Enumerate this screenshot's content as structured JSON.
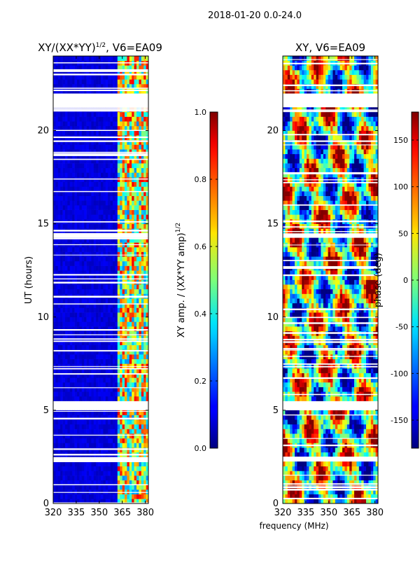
{
  "page_title": "2018-01-20 0.0-24.0",
  "chart_data": [
    {
      "type": "heatmap",
      "title": "XY/(XX*YY)^1/2, V6=EA09",
      "title_main": "XY/(XX*YY)",
      "title_sup": "1/2",
      "title_rest": ", V6=EA09",
      "xlabel": "",
      "ylabel": "UT (hours)",
      "xlim": [
        320,
        382
      ],
      "ylim": [
        0,
        24
      ],
      "xticks": [
        320,
        335,
        350,
        365,
        380
      ],
      "yticks": [
        0,
        5,
        10,
        15,
        20
      ],
      "colorbar": {
        "label": "XY amp. / (XX*YY amp)^1/2",
        "label_main": "XY amp. / (XX*YY amp)",
        "label_sup": "1/2",
        "range": [
          0.0,
          1.0
        ],
        "ticks": [
          "0.0",
          "0.2",
          "0.4",
          "0.6",
          "0.8",
          "1.0"
        ],
        "colormap": "jet"
      },
      "data_gaps_hours": [
        [
          21.2,
          22.0
        ],
        [
          5.1,
          5.6
        ],
        [
          2.3,
          2.45
        ],
        [
          14.3,
          14.6
        ]
      ],
      "note": "low amplitude (~0.0-0.1) for 320-362 MHz; mixed 0.3-0.9 for 362-380 MHz"
    },
    {
      "type": "heatmap",
      "title": "XY, V6=EA09",
      "xlabel": "frequency (MHz)",
      "ylabel": "",
      "xlim": [
        320,
        382
      ],
      "ylim": [
        0,
        24
      ],
      "xticks": [
        320,
        335,
        350,
        365,
        380
      ],
      "yticks": [
        0,
        5,
        10,
        15,
        20
      ],
      "colorbar": {
        "label": "phase (deg)",
        "range": [
          -180,
          180
        ],
        "ticks": [
          "-150",
          "-100",
          "-50",
          "0",
          "50",
          "100",
          "150"
        ],
        "colormap": "jet"
      },
      "data_gaps_hours": [
        [
          21.2,
          22.0
        ],
        [
          5.1,
          5.6
        ],
        [
          2.3,
          2.45
        ],
        [
          14.3,
          14.6
        ]
      ],
      "note": "phase spans full -180 to 180 range with structured patterns"
    }
  ]
}
